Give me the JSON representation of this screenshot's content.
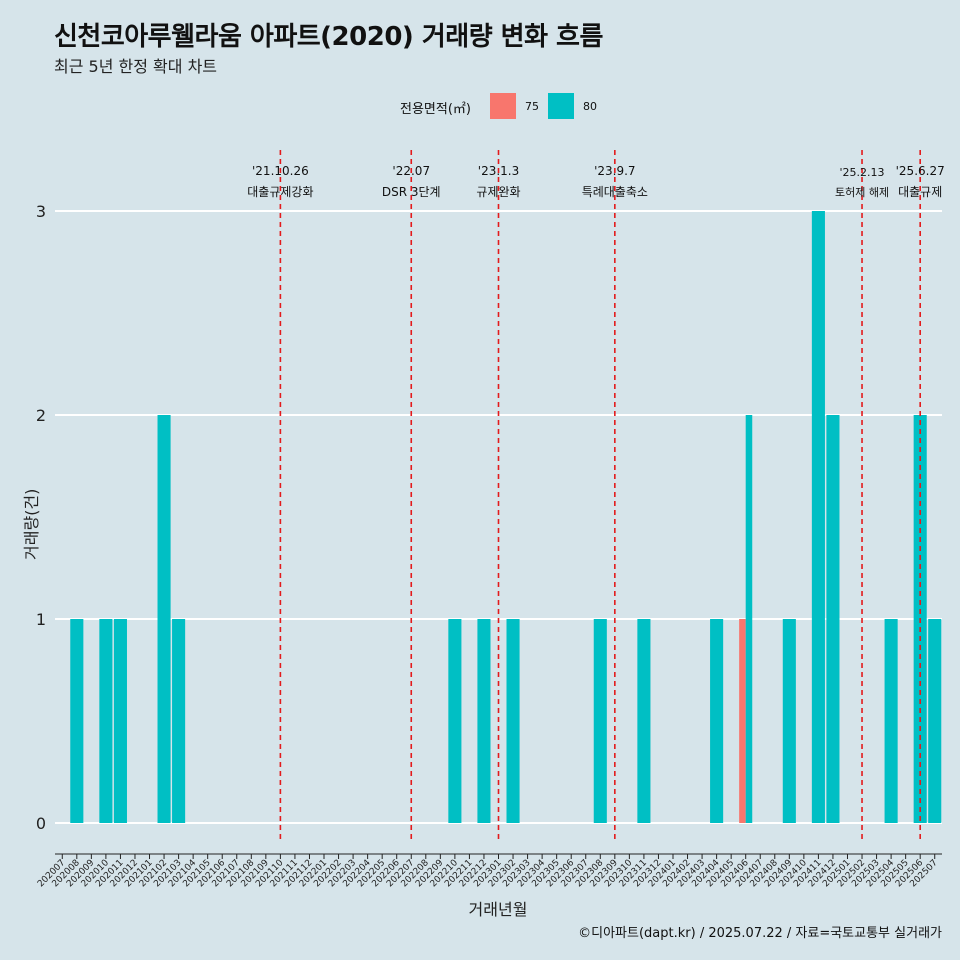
{
  "title": "신천코아루웰라움 아파트(2020) 거래량 변화 흐름",
  "subtitle": "최근 5년 한정 확대 차트",
  "legend": {
    "title": "전용면적(㎡)",
    "items": [
      {
        "label": "75",
        "color": "#f8766d"
      },
      {
        "label": "80",
        "color": "#00bfc4"
      }
    ]
  },
  "caption": "©디아파트(dapt.kr) / 2025.07.22 / 자료=국토교통부 실거래가",
  "chart_data": {
    "type": "bar",
    "xlabel": "거래년월",
    "ylabel": "거래량(건)",
    "ylim": [
      0,
      3
    ],
    "yticks": [
      0,
      1,
      2,
      3
    ],
    "grid": "horizontal",
    "legend_position": "top",
    "categories": [
      "202007",
      "202008",
      "202009",
      "202010",
      "202011",
      "202012",
      "202101",
      "202102",
      "202103",
      "202104",
      "202105",
      "202106",
      "202107",
      "202108",
      "202109",
      "202110",
      "202111",
      "202112",
      "202201",
      "202202",
      "202203",
      "202204",
      "202205",
      "202206",
      "202207",
      "202208",
      "202209",
      "202210",
      "202211",
      "202212",
      "202301",
      "202302",
      "202303",
      "202304",
      "202305",
      "202306",
      "202307",
      "202308",
      "202309",
      "202310",
      "202311",
      "202312",
      "202401",
      "202402",
      "202403",
      "202404",
      "202405",
      "202406",
      "202407",
      "202408",
      "202409",
      "202410",
      "202411",
      "202412",
      "202501",
      "202502",
      "202503",
      "202504",
      "202505",
      "202506",
      "202507"
    ],
    "series": [
      {
        "name": "75",
        "color": "#f8766d",
        "values": [
          0,
          0,
          0,
          0,
          0,
          0,
          0,
          0,
          0,
          0,
          0,
          0,
          0,
          0,
          0,
          0,
          0,
          0,
          0,
          0,
          0,
          0,
          0,
          0,
          0,
          0,
          0,
          0,
          0,
          0,
          0,
          0,
          0,
          0,
          0,
          0,
          0,
          0,
          0,
          0,
          0,
          0,
          0,
          0,
          0,
          0,
          0,
          1,
          0,
          0,
          0,
          0,
          0,
          0,
          0,
          0,
          0,
          0,
          0,
          0,
          0
        ]
      },
      {
        "name": "80",
        "color": "#00bfc4",
        "values": [
          0,
          1,
          0,
          1,
          1,
          0,
          0,
          2,
          1,
          0,
          0,
          0,
          0,
          0,
          0,
          0,
          0,
          0,
          0,
          0,
          0,
          0,
          0,
          0,
          0,
          0,
          0,
          1,
          0,
          1,
          0,
          1,
          0,
          0,
          0,
          0,
          0,
          1,
          0,
          0,
          1,
          0,
          0,
          0,
          0,
          1,
          0,
          2,
          0,
          0,
          1,
          0,
          3,
          2,
          0,
          0,
          0,
          1,
          0,
          2,
          1
        ]
      }
    ],
    "events": [
      {
        "month": "202110",
        "date": "'21.10.26",
        "label": "대출규제강화"
      },
      {
        "month": "202207",
        "date": "'22.07",
        "label": "DSR 3단계"
      },
      {
        "month": "202301",
        "date": "'23.1.3",
        "label": "규제완화"
      },
      {
        "month": "202309",
        "date": "'23.9.7",
        "label": "특례대출축소"
      },
      {
        "month": "202502",
        "date": "'25.2.13",
        "label": "토허제 해제"
      },
      {
        "month": "202506",
        "date": "'25.6.27",
        "label": "대출규제"
      }
    ]
  }
}
